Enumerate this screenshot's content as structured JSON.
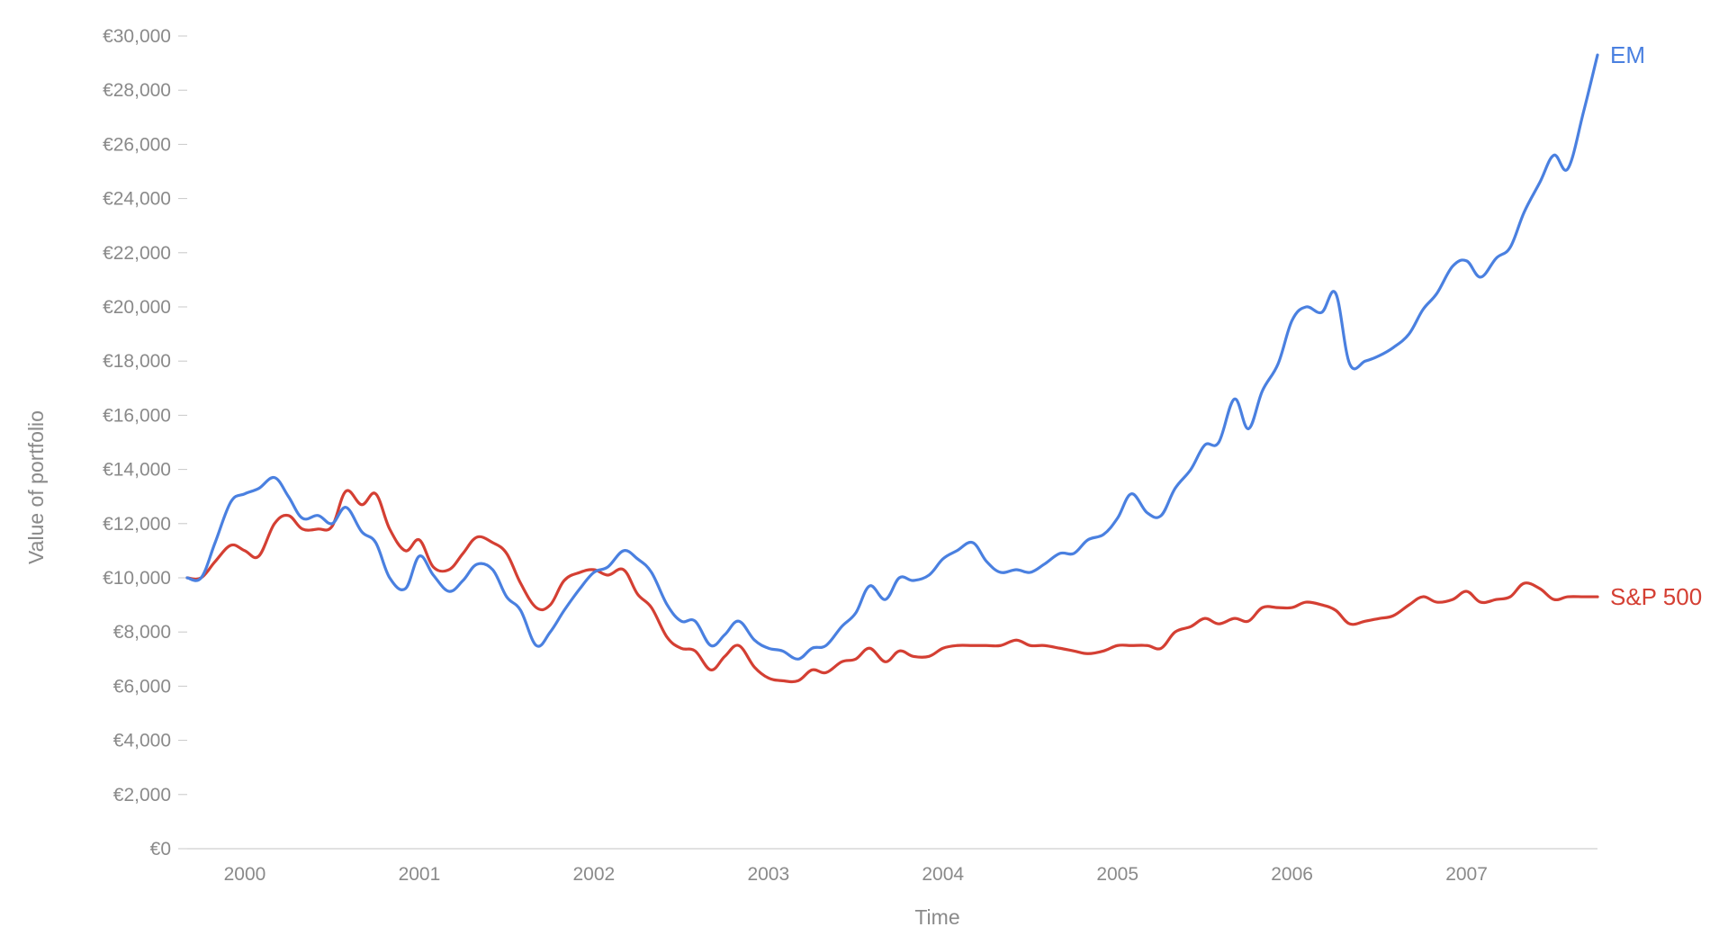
{
  "chart_data": {
    "type": "line",
    "title": "",
    "xlabel": "Time",
    "ylabel": "Value of portfolio",
    "x_tick_labels": [
      "2000",
      "2001",
      "2002",
      "2003",
      "2004",
      "2005",
      "2006",
      "2007"
    ],
    "y_tick_labels": [
      "€0",
      "€2,000",
      "€4,000",
      "€6,000",
      "€8,000",
      "€10,000",
      "€12,000",
      "€14,000",
      "€16,000",
      "€18,000",
      "€20,000",
      "€22,000",
      "€24,000",
      "€26,000",
      "€28,000",
      "€30,000"
    ],
    "xlim": [
      1999.67,
      2007.75
    ],
    "ylim": [
      0,
      30000
    ],
    "grid": false,
    "legend": "none (series labeled at line ends)",
    "series": [
      {
        "name": "EM",
        "color": "#4a80e0",
        "points": [
          [
            1999.67,
            10000
          ],
          [
            1999.75,
            10000
          ],
          [
            1999.83,
            11300
          ],
          [
            1999.92,
            12800
          ],
          [
            2000.0,
            13100
          ],
          [
            2000.08,
            13300
          ],
          [
            2000.17,
            13700
          ],
          [
            2000.25,
            13000
          ],
          [
            2000.33,
            12200
          ],
          [
            2000.42,
            12300
          ],
          [
            2000.5,
            12000
          ],
          [
            2000.58,
            12600
          ],
          [
            2000.67,
            11700
          ],
          [
            2000.75,
            11300
          ],
          [
            2000.83,
            10000
          ],
          [
            2000.92,
            9600
          ],
          [
            2001.0,
            10800
          ],
          [
            2001.08,
            10100
          ],
          [
            2001.17,
            9500
          ],
          [
            2001.25,
            9900
          ],
          [
            2001.33,
            10500
          ],
          [
            2001.42,
            10300
          ],
          [
            2001.5,
            9300
          ],
          [
            2001.58,
            8800
          ],
          [
            2001.67,
            7500
          ],
          [
            2001.75,
            8000
          ],
          [
            2001.83,
            8800
          ],
          [
            2001.92,
            9600
          ],
          [
            2002.0,
            10200
          ],
          [
            2002.08,
            10400
          ],
          [
            2002.17,
            11000
          ],
          [
            2002.25,
            10700
          ],
          [
            2002.33,
            10200
          ],
          [
            2002.42,
            9000
          ],
          [
            2002.5,
            8400
          ],
          [
            2002.58,
            8400
          ],
          [
            2002.67,
            7500
          ],
          [
            2002.75,
            7900
          ],
          [
            2002.83,
            8400
          ],
          [
            2002.92,
            7700
          ],
          [
            2003.0,
            7400
          ],
          [
            2003.08,
            7300
          ],
          [
            2003.17,
            7000
          ],
          [
            2003.25,
            7400
          ],
          [
            2003.33,
            7500
          ],
          [
            2003.42,
            8200
          ],
          [
            2003.5,
            8700
          ],
          [
            2003.58,
            9700
          ],
          [
            2003.67,
            9200
          ],
          [
            2003.75,
            10000
          ],
          [
            2003.83,
            9900
          ],
          [
            2003.92,
            10100
          ],
          [
            2004.0,
            10700
          ],
          [
            2004.08,
            11000
          ],
          [
            2004.17,
            11300
          ],
          [
            2004.25,
            10600
          ],
          [
            2004.33,
            10200
          ],
          [
            2004.42,
            10300
          ],
          [
            2004.5,
            10200
          ],
          [
            2004.58,
            10500
          ],
          [
            2004.67,
            10900
          ],
          [
            2004.75,
            10900
          ],
          [
            2004.83,
            11400
          ],
          [
            2004.92,
            11600
          ],
          [
            2005.0,
            12200
          ],
          [
            2005.08,
            13100
          ],
          [
            2005.17,
            12400
          ],
          [
            2005.25,
            12300
          ],
          [
            2005.33,
            13300
          ],
          [
            2005.42,
            14000
          ],
          [
            2005.5,
            14900
          ],
          [
            2005.58,
            15000
          ],
          [
            2005.67,
            16600
          ],
          [
            2005.75,
            15500
          ],
          [
            2005.83,
            16900
          ],
          [
            2005.92,
            17900
          ],
          [
            2006.0,
            19500
          ],
          [
            2006.08,
            20000
          ],
          [
            2006.17,
            19800
          ],
          [
            2006.25,
            20500
          ],
          [
            2006.33,
            17900
          ],
          [
            2006.42,
            18000
          ],
          [
            2006.5,
            18200
          ],
          [
            2006.58,
            18500
          ],
          [
            2006.67,
            19000
          ],
          [
            2006.75,
            19900
          ],
          [
            2006.83,
            20500
          ],
          [
            2006.92,
            21500
          ],
          [
            2007.0,
            21700
          ],
          [
            2007.08,
            21100
          ],
          [
            2007.17,
            21800
          ],
          [
            2007.25,
            22200
          ],
          [
            2007.33,
            23500
          ],
          [
            2007.42,
            24600
          ],
          [
            2007.5,
            25600
          ],
          [
            2007.58,
            25100
          ],
          [
            2007.67,
            27200
          ],
          [
            2007.75,
            29300
          ]
        ]
      },
      {
        "name": "S&P 500",
        "color": "#d43f33",
        "points": [
          [
            1999.67,
            10000
          ],
          [
            1999.75,
            10000
          ],
          [
            1999.83,
            10600
          ],
          [
            1999.92,
            11200
          ],
          [
            2000.0,
            11000
          ],
          [
            2000.08,
            10800
          ],
          [
            2000.17,
            12000
          ],
          [
            2000.25,
            12300
          ],
          [
            2000.33,
            11800
          ],
          [
            2000.42,
            11800
          ],
          [
            2000.5,
            11900
          ],
          [
            2000.58,
            13200
          ],
          [
            2000.67,
            12700
          ],
          [
            2000.75,
            13100
          ],
          [
            2000.83,
            11800
          ],
          [
            2000.92,
            11000
          ],
          [
            2001.0,
            11400
          ],
          [
            2001.08,
            10400
          ],
          [
            2001.17,
            10300
          ],
          [
            2001.25,
            10900
          ],
          [
            2001.33,
            11500
          ],
          [
            2001.42,
            11300
          ],
          [
            2001.5,
            10900
          ],
          [
            2001.58,
            9800
          ],
          [
            2001.67,
            8900
          ],
          [
            2001.75,
            9000
          ],
          [
            2001.83,
            9900
          ],
          [
            2001.92,
            10200
          ],
          [
            2002.0,
            10300
          ],
          [
            2002.08,
            10100
          ],
          [
            2002.17,
            10300
          ],
          [
            2002.25,
            9400
          ],
          [
            2002.33,
            8900
          ],
          [
            2002.42,
            7800
          ],
          [
            2002.5,
            7400
          ],
          [
            2002.58,
            7300
          ],
          [
            2002.67,
            6600
          ],
          [
            2002.75,
            7100
          ],
          [
            2002.83,
            7500
          ],
          [
            2002.92,
            6700
          ],
          [
            2003.0,
            6300
          ],
          [
            2003.08,
            6200
          ],
          [
            2003.17,
            6200
          ],
          [
            2003.25,
            6600
          ],
          [
            2003.33,
            6500
          ],
          [
            2003.42,
            6900
          ],
          [
            2003.5,
            7000
          ],
          [
            2003.58,
            7400
          ],
          [
            2003.67,
            6900
          ],
          [
            2003.75,
            7300
          ],
          [
            2003.83,
            7100
          ],
          [
            2003.92,
            7100
          ],
          [
            2004.0,
            7400
          ],
          [
            2004.08,
            7500
          ],
          [
            2004.17,
            7500
          ],
          [
            2004.25,
            7500
          ],
          [
            2004.33,
            7500
          ],
          [
            2004.42,
            7700
          ],
          [
            2004.5,
            7500
          ],
          [
            2004.58,
            7500
          ],
          [
            2004.67,
            7400
          ],
          [
            2004.75,
            7300
          ],
          [
            2004.83,
            7200
          ],
          [
            2004.92,
            7300
          ],
          [
            2005.0,
            7500
          ],
          [
            2005.08,
            7500
          ],
          [
            2005.17,
            7500
          ],
          [
            2005.25,
            7400
          ],
          [
            2005.33,
            8000
          ],
          [
            2005.42,
            8200
          ],
          [
            2005.5,
            8500
          ],
          [
            2005.58,
            8300
          ],
          [
            2005.67,
            8500
          ],
          [
            2005.75,
            8400
          ],
          [
            2005.83,
            8900
          ],
          [
            2005.92,
            8900
          ],
          [
            2006.0,
            8900
          ],
          [
            2006.08,
            9100
          ],
          [
            2006.17,
            9000
          ],
          [
            2006.25,
            8800
          ],
          [
            2006.33,
            8300
          ],
          [
            2006.42,
            8400
          ],
          [
            2006.5,
            8500
          ],
          [
            2006.58,
            8600
          ],
          [
            2006.67,
            9000
          ],
          [
            2006.75,
            9300
          ],
          [
            2006.83,
            9100
          ],
          [
            2006.92,
            9200
          ],
          [
            2007.0,
            9500
          ],
          [
            2007.08,
            9100
          ],
          [
            2007.17,
            9200
          ],
          [
            2007.25,
            9300
          ],
          [
            2007.33,
            9800
          ],
          [
            2007.42,
            9600
          ],
          [
            2007.5,
            9200
          ],
          [
            2007.58,
            9300
          ],
          [
            2007.67,
            9300
          ],
          [
            2007.75,
            9300
          ]
        ]
      }
    ]
  }
}
